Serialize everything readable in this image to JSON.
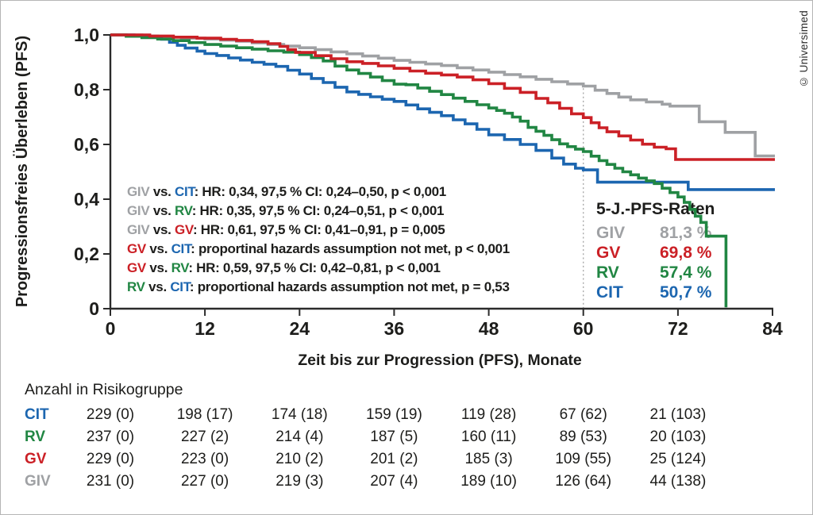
{
  "page": {
    "background": "#ffffff",
    "border_color": "#b5b5b5"
  },
  "copyright_label": "© Universimed",
  "colors": {
    "GIV": "#9fa1a4",
    "GV": "#cb2026",
    "RV": "#218643",
    "CIT": "#1c66b0",
    "text": "#1d1d1b",
    "axis": "#2b2b2b",
    "refline": "#aaaaaa"
  },
  "chart_data": {
    "type": "line",
    "subtype": "kaplan_meier_step",
    "title": "",
    "xlabel": "Zeit bis zur Progression (PFS), Monate",
    "ylabel": "Progressionsfreies Überleben (PFS)",
    "xlim": [
      0,
      84
    ],
    "ylim": [
      0,
      1
    ],
    "grid": false,
    "x_ticks": [
      {
        "v": 0,
        "label": "0"
      },
      {
        "v": 12,
        "label": "12"
      },
      {
        "v": 24,
        "label": "24"
      },
      {
        "v": 36,
        "label": "36"
      },
      {
        "v": 48,
        "label": "48"
      },
      {
        "v": 60,
        "label": "60"
      },
      {
        "v": 72,
        "label": "72"
      },
      {
        "v": 84,
        "label": "84"
      }
    ],
    "y_ticks": [
      {
        "v": 1,
        "label": "1,0"
      },
      {
        "v": 0.8,
        "label": "0,8"
      },
      {
        "v": 0.6,
        "label": "0,6"
      },
      {
        "v": 0.4,
        "label": "0,4"
      },
      {
        "v": 0.2,
        "label": "0,2"
      },
      {
        "v": 0,
        "label": "0"
      }
    ],
    "reference_line": {
      "x": 60,
      "y_extent": [
        0,
        0.82
      ],
      "style": "dashed"
    },
    "draw_order": [
      "GIV",
      "CIT",
      "RV",
      "GV"
    ],
    "series": [
      {
        "name": "GIV",
        "color_key": "GIV",
        "five_year_rate": "81,3 %",
        "points": [
          [
            0,
            1.0
          ],
          [
            4,
            0.996
          ],
          [
            6,
            0.992
          ],
          [
            9,
            0.988
          ],
          [
            12,
            0.985
          ],
          [
            14,
            0.981
          ],
          [
            16,
            0.977
          ],
          [
            18,
            0.971
          ],
          [
            20,
            0.965
          ],
          [
            22,
            0.959
          ],
          [
            24,
            0.953
          ],
          [
            26,
            0.946
          ],
          [
            28,
            0.938
          ],
          [
            30,
            0.931
          ],
          [
            32,
            0.923
          ],
          [
            34,
            0.915
          ],
          [
            36,
            0.907
          ],
          [
            38,
            0.9
          ],
          [
            40,
            0.894
          ],
          [
            42,
            0.888
          ],
          [
            44,
            0.88
          ],
          [
            46,
            0.872
          ],
          [
            48,
            0.864
          ],
          [
            50,
            0.855
          ],
          [
            52,
            0.847
          ],
          [
            54,
            0.838
          ],
          [
            56,
            0.829
          ],
          [
            58,
            0.821
          ],
          [
            60,
            0.813
          ],
          [
            61.5,
            0.798
          ],
          [
            63,
            0.786
          ],
          [
            64.5,
            0.773
          ],
          [
            66,
            0.763
          ],
          [
            68,
            0.755
          ],
          [
            70,
            0.747
          ],
          [
            71,
            0.74
          ],
          [
            74.7,
            0.683
          ],
          [
            78,
            0.644
          ],
          [
            81.8,
            0.558
          ],
          [
            84.3,
            0.558
          ]
        ]
      },
      {
        "name": "GV",
        "color_key": "GV",
        "five_year_rate": "69,8 %",
        "points": [
          [
            0,
            1.0
          ],
          [
            5,
            0.996
          ],
          [
            8,
            0.992
          ],
          [
            11,
            0.988
          ],
          [
            14,
            0.984
          ],
          [
            16,
            0.98
          ],
          [
            18,
            0.975
          ],
          [
            20,
            0.968
          ],
          [
            21.5,
            0.958
          ],
          [
            22.5,
            0.946
          ],
          [
            23.5,
            0.936
          ],
          [
            26,
            0.924
          ],
          [
            28,
            0.913
          ],
          [
            30,
            0.902
          ],
          [
            32,
            0.896
          ],
          [
            34,
            0.887
          ],
          [
            36,
            0.878
          ],
          [
            38,
            0.868
          ],
          [
            40,
            0.86
          ],
          [
            42,
            0.854
          ],
          [
            44,
            0.846
          ],
          [
            46,
            0.836
          ],
          [
            48,
            0.822
          ],
          [
            50,
            0.805
          ],
          [
            52,
            0.79
          ],
          [
            54,
            0.768
          ],
          [
            55.5,
            0.752
          ],
          [
            57,
            0.732
          ],
          [
            58.5,
            0.712
          ],
          [
            60,
            0.698
          ],
          [
            61,
            0.679
          ],
          [
            62,
            0.661
          ],
          [
            63,
            0.646
          ],
          [
            64.5,
            0.631
          ],
          [
            66,
            0.616
          ],
          [
            67.5,
            0.601
          ],
          [
            69,
            0.59
          ],
          [
            70.5,
            0.584
          ],
          [
            71.7,
            0.545
          ],
          [
            84.3,
            0.545
          ]
        ]
      },
      {
        "name": "RV",
        "color_key": "RV",
        "five_year_rate": "57,4 %",
        "points": [
          [
            0,
            1.0
          ],
          [
            2,
            0.995
          ],
          [
            4,
            0.99
          ],
          [
            6,
            0.985
          ],
          [
            8,
            0.979
          ],
          [
            10,
            0.972
          ],
          [
            12,
            0.965
          ],
          [
            14,
            0.959
          ],
          [
            16,
            0.953
          ],
          [
            18,
            0.948
          ],
          [
            20,
            0.942
          ],
          [
            22,
            0.937
          ],
          [
            24,
            0.928
          ],
          [
            25.5,
            0.917
          ],
          [
            27,
            0.905
          ],
          [
            28.5,
            0.886
          ],
          [
            30,
            0.872
          ],
          [
            31.5,
            0.859
          ],
          [
            33,
            0.846
          ],
          [
            34.5,
            0.833
          ],
          [
            36,
            0.82
          ],
          [
            37.5,
            0.818
          ],
          [
            39,
            0.806
          ],
          [
            40.5,
            0.794
          ],
          [
            42,
            0.782
          ],
          [
            43.5,
            0.769
          ],
          [
            45,
            0.757
          ],
          [
            46.5,
            0.745
          ],
          [
            48,
            0.733
          ],
          [
            49,
            0.724
          ],
          [
            50,
            0.714
          ],
          [
            51,
            0.7
          ],
          [
            52,
            0.685
          ],
          [
            53,
            0.662
          ],
          [
            54,
            0.648
          ],
          [
            55,
            0.633
          ],
          [
            56,
            0.617
          ],
          [
            57,
            0.602
          ],
          [
            58,
            0.592
          ],
          [
            59,
            0.583
          ],
          [
            60,
            0.574
          ],
          [
            61,
            0.557
          ],
          [
            62,
            0.541
          ],
          [
            63,
            0.527
          ],
          [
            64,
            0.513
          ],
          [
            65,
            0.5
          ],
          [
            66,
            0.489
          ],
          [
            67,
            0.477
          ],
          [
            68,
            0.467
          ],
          [
            69,
            0.457
          ],
          [
            70,
            0.44
          ],
          [
            71,
            0.424
          ],
          [
            72,
            0.408
          ],
          [
            72.8,
            0.388
          ],
          [
            73.5,
            0.363
          ],
          [
            74.2,
            0.338
          ],
          [
            74.9,
            0.315
          ],
          [
            75.6,
            0.265
          ],
          [
            78.1,
            0.005
          ]
        ]
      },
      {
        "name": "CIT",
        "color_key": "CIT",
        "five_year_rate": "50,7 %",
        "points": [
          [
            0,
            1.0
          ],
          [
            3,
            0.996
          ],
          [
            5,
            0.991
          ],
          [
            6.5,
            0.984
          ],
          [
            7.5,
            0.973
          ],
          [
            8.5,
            0.962
          ],
          [
            9.5,
            0.952
          ],
          [
            11,
            0.941
          ],
          [
            12,
            0.932
          ],
          [
            13.5,
            0.925
          ],
          [
            15,
            0.916
          ],
          [
            16.5,
            0.908
          ],
          [
            18,
            0.9
          ],
          [
            19.5,
            0.893
          ],
          [
            21,
            0.885
          ],
          [
            22.5,
            0.871
          ],
          [
            24,
            0.857
          ],
          [
            25.5,
            0.841
          ],
          [
            27,
            0.826
          ],
          [
            28.5,
            0.809
          ],
          [
            30,
            0.792
          ],
          [
            31.5,
            0.783
          ],
          [
            33,
            0.774
          ],
          [
            34.5,
            0.765
          ],
          [
            36,
            0.757
          ],
          [
            37.5,
            0.744
          ],
          [
            39,
            0.73
          ],
          [
            40.5,
            0.717
          ],
          [
            42,
            0.705
          ],
          [
            43.5,
            0.69
          ],
          [
            45,
            0.675
          ],
          [
            46.5,
            0.655
          ],
          [
            48,
            0.635
          ],
          [
            50,
            0.618
          ],
          [
            52,
            0.6
          ],
          [
            54,
            0.578
          ],
          [
            56,
            0.55
          ],
          [
            57.5,
            0.528
          ],
          [
            59,
            0.513
          ],
          [
            60,
            0.507
          ],
          [
            61.8,
            0.462
          ],
          [
            73.3,
            0.435
          ],
          [
            84.3,
            0.435
          ]
        ]
      }
    ],
    "stats_annotations": [
      {
        "parts": [
          {
            "t": "GIV",
            "g": "GIV"
          },
          {
            "t": " vs. "
          },
          {
            "t": "CIT",
            "g": "CIT"
          },
          {
            "t": ": HR: 0,34, 97,5 % CI: 0,24–0,50, p < 0,001"
          }
        ]
      },
      {
        "parts": [
          {
            "t": "GIV",
            "g": "GIV"
          },
          {
            "t": " vs. "
          },
          {
            "t": "RV",
            "g": "RV"
          },
          {
            "t": ": HR: 0,35, 97,5 % CI: 0,24–0,51, p < 0,001"
          }
        ]
      },
      {
        "parts": [
          {
            "t": "GIV",
            "g": "GIV"
          },
          {
            "t": " vs. "
          },
          {
            "t": "GV",
            "g": "GV"
          },
          {
            "t": ": HR: 0,61, 97,5 % CI: 0,41–0,91, p = 0,005"
          }
        ]
      },
      {
        "parts": [
          {
            "t": "GV",
            "g": "GV"
          },
          {
            "t": " vs. "
          },
          {
            "t": "CIT",
            "g": "CIT"
          },
          {
            "t": ": proportinal hazards assumption not met, p < 0,001"
          }
        ]
      },
      {
        "parts": [
          {
            "t": "GV",
            "g": "GV"
          },
          {
            "t": " vs. "
          },
          {
            "t": "RV",
            "g": "RV"
          },
          {
            "t": ": HR: 0,59, 97,5 % CI: 0,42–0,81, p < 0,001"
          }
        ]
      },
      {
        "parts": [
          {
            "t": "RV",
            "g": "RV"
          },
          {
            "t": " vs. "
          },
          {
            "t": "CIT",
            "g": "CIT"
          },
          {
            "t": ": proportional hazards assumption not met, p = 0,53"
          }
        ]
      }
    ],
    "five_year_box": {
      "title": "5-J.-PFS-Raten",
      "rows": [
        {
          "g": "GIV",
          "label": "GIV",
          "value": "81,3 %"
        },
        {
          "g": "GV",
          "label": "GV",
          "value": "69,8 %"
        },
        {
          "g": "RV",
          "label": "RV",
          "value": "57,4 %"
        },
        {
          "g": "CIT",
          "label": "CIT",
          "value": "50,7 %"
        }
      ]
    }
  },
  "risk_table": {
    "title": "Anzahl in Risikogruppe",
    "columns_months": [
      0,
      12,
      24,
      36,
      48,
      60,
      72
    ],
    "rows": [
      {
        "g": "CIT",
        "label": "CIT",
        "counts": [
          "229 (0)",
          "198 (17)",
          "174 (18)",
          "159 (19)",
          "119 (28)",
          "67 (62)",
          "21 (103)"
        ]
      },
      {
        "g": "RV",
        "label": "RV",
        "counts": [
          "237 (0)",
          "227 (2)",
          "214 (4)",
          "187 (5)",
          "160 (11)",
          "89 (53)",
          "20 (103)"
        ]
      },
      {
        "g": "GV",
        "label": "GV",
        "counts": [
          "229 (0)",
          "223 (0)",
          "210 (2)",
          "201 (2)",
          "185 (3)",
          "109 (55)",
          "25 (124)"
        ]
      },
      {
        "g": "GIV",
        "label": "GIV",
        "counts": [
          "231 (0)",
          "227 (0)",
          "219 (3)",
          "207 (4)",
          "189 (10)",
          "126 (64)",
          "44 (138)"
        ]
      }
    ]
  }
}
